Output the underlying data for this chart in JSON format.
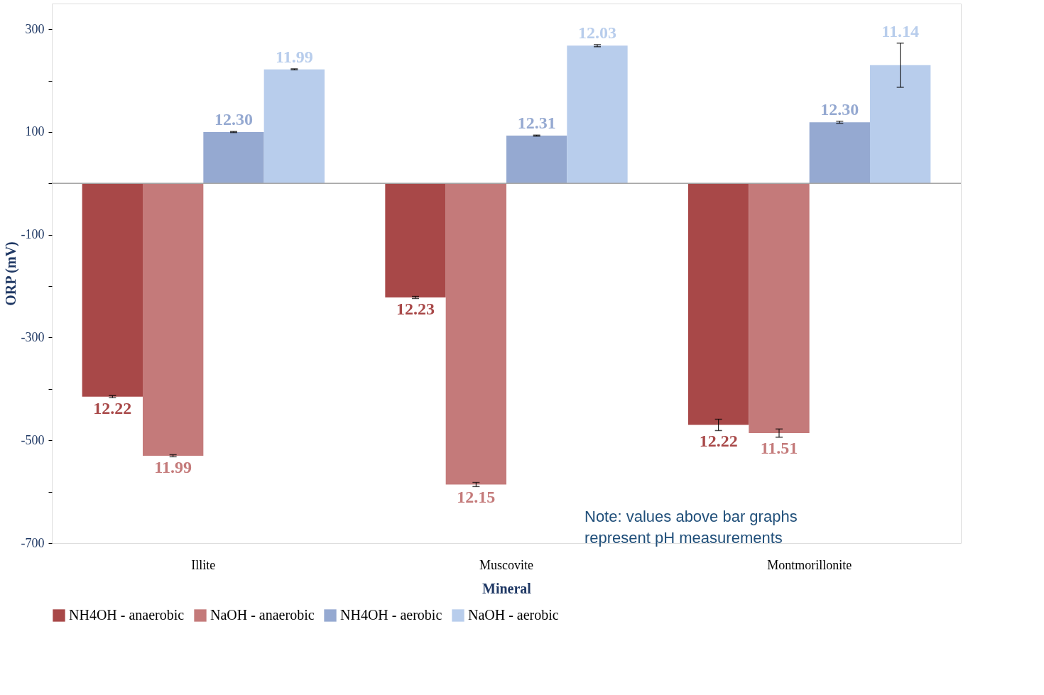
{
  "chart_data": {
    "type": "bar",
    "xlabel": "Mineral",
    "ylabel": "ORP (mV)",
    "categories": [
      "Illite",
      "Muscovite",
      "Montmorillonite"
    ],
    "series": [
      {
        "name": "NH4OH - anaerobic",
        "color": "#a84848",
        "values": [
          -415,
          -222,
          -470
        ],
        "errors": [
          2,
          2,
          11
        ]
      },
      {
        "name": "NaOH - anaerobic",
        "color": "#c47a7a",
        "values": [
          -530,
          -586,
          -486
        ],
        "errors": [
          2,
          4,
          8
        ]
      },
      {
        "name": "NH4OH - aerobic",
        "color": "#95a9d1",
        "values": [
          100,
          93,
          119
        ],
        "errors": [
          1,
          1,
          2
        ]
      },
      {
        "name": "NaOH - aerobic",
        "color": "#b8cdec",
        "values": [
          222,
          268,
          230
        ],
        "errors": [
          1,
          2,
          43
        ]
      }
    ],
    "ylim": [
      -700,
      350
    ],
    "yticks": [
      -700,
      {
        "value": -600,
        "label": null
      },
      -500,
      {
        "value": -400,
        "label": null
      },
      -300,
      {
        "value": -200,
        "label": null
      },
      -100,
      {
        "value": 0,
        "label": null
      },
      100,
      {
        "value": 200,
        "label": null
      },
      300
    ],
    "ref_lines": [
      {
        "axis": "y",
        "value": 0,
        "color": "#a6a6a6"
      }
    ],
    "annotations": [
      "12.22",
      "11.99",
      "12.30",
      "11.99",
      "12.23",
      "12.15",
      "12.31",
      "12.03",
      "12.22",
      "11.51",
      "12.30",
      "11.14",
      "Note: values above bar graphs\nrepresent pH measurements"
    ],
    "legend": "bottom",
    "grid": false
  }
}
